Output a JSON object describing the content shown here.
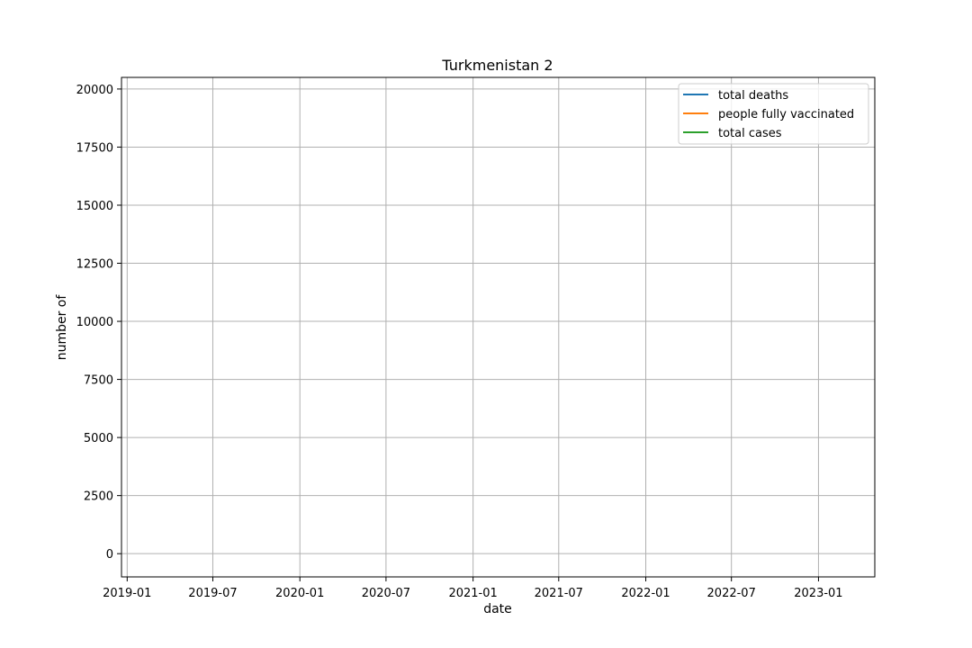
{
  "chart_data": {
    "type": "line",
    "title": "Turkmenistan 2",
    "xlabel": "date",
    "ylabel": "number of",
    "x_tick_labels": [
      "2019-01",
      "2019-07",
      "2020-01",
      "2020-07",
      "2021-01",
      "2021-07",
      "2022-01",
      "2022-07",
      "2023-01"
    ],
    "y_tick_labels": [
      "0",
      "2500",
      "5000",
      "7500",
      "10000",
      "12500",
      "15000",
      "17500",
      "20000"
    ],
    "xlim": [
      "2018-12-20",
      "2023-04-30"
    ],
    "ylim": [
      -1000,
      20500
    ],
    "grid": true,
    "legend_position": "upper right",
    "series": [
      {
        "name": "total deaths",
        "color": "#1f77b4",
        "x": [],
        "y": []
      },
      {
        "name": "people fully vaccinated",
        "color": "#ff7f0e",
        "x": [],
        "y": []
      },
      {
        "name": "total cases",
        "color": "#2ca02c",
        "x": [],
        "y": []
      }
    ]
  }
}
